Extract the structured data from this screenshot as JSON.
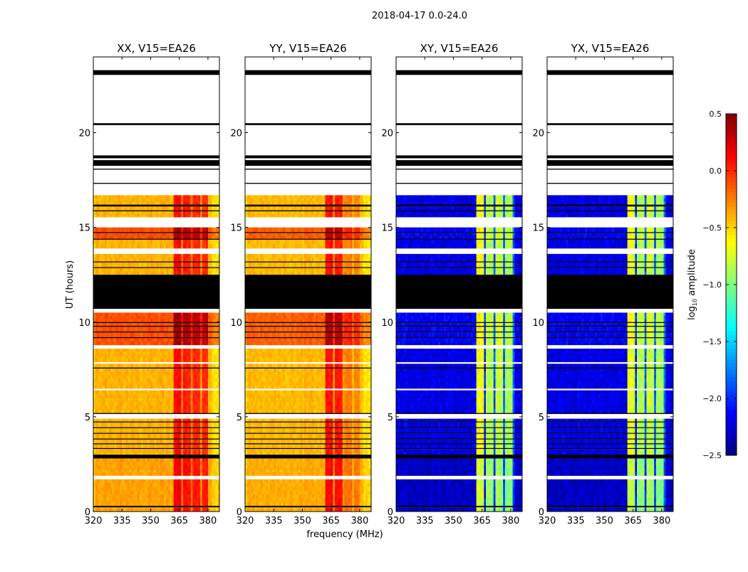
{
  "chart_data": {
    "type": "heatmap",
    "suptitle": "2018-04-17 0.0-24.0",
    "xlabel": "frequency (MHz)",
    "ylabel": "UT (hours)",
    "xlim": [
      320,
      386
    ],
    "ylim": [
      0,
      24
    ],
    "xticks": [
      "320",
      "335",
      "350",
      "365",
      "380"
    ],
    "xtick_values": [
      320,
      335,
      350,
      365,
      380
    ],
    "yticks": [
      "0",
      "5",
      "10",
      "15",
      "20"
    ],
    "ytick_values": [
      0,
      5,
      10,
      15,
      20
    ],
    "colorbar": {
      "label_main": "log",
      "label_sub": "10",
      "label_rest": " amplitude",
      "range": [
        -2.5,
        0.5
      ],
      "cmap": "jet",
      "ticks": [
        "0.5",
        "0.0",
        "−0.5",
        "−1.0",
        "−1.5",
        "−2.0",
        "−2.5"
      ],
      "tick_values": [
        0.5,
        0.0,
        -0.5,
        -1.0,
        -1.5,
        -2.0,
        -2.5
      ]
    },
    "time_segments": [
      [
        23.3,
        24,
        "blank",
        0
      ],
      [
        23.05,
        23.3,
        "flag",
        0
      ],
      [
        20.5,
        23.05,
        "blank",
        0
      ],
      [
        20.4,
        20.5,
        "flag",
        0
      ],
      [
        18.8,
        20.4,
        "blank",
        0
      ],
      [
        18.65,
        18.8,
        "flag",
        0
      ],
      [
        18.55,
        18.65,
        "blank",
        0
      ],
      [
        18.25,
        18.55,
        "flag",
        0
      ],
      [
        18.1,
        18.25,
        "blank",
        0
      ],
      [
        18.05,
        18.1,
        "flag",
        0
      ],
      [
        17.35,
        18.05,
        "blank",
        0
      ],
      [
        17.3,
        17.35,
        "flag",
        0
      ],
      [
        16.7,
        17.3,
        "blank",
        0
      ],
      [
        16.2,
        16.7,
        "data",
        0
      ],
      [
        16.1,
        16.2,
        "flag",
        0
      ],
      [
        15.9,
        16.1,
        "data",
        0
      ],
      [
        15.85,
        15.9,
        "flag",
        0
      ],
      [
        15.55,
        15.85,
        "data",
        0
      ],
      [
        15.0,
        15.55,
        "blank",
        0
      ],
      [
        14.75,
        15.0,
        "data",
        1
      ],
      [
        14.7,
        14.75,
        "flag",
        0
      ],
      [
        14.4,
        14.7,
        "data",
        1
      ],
      [
        14.35,
        14.4,
        "flag",
        0
      ],
      [
        13.9,
        14.35,
        "data",
        0
      ],
      [
        13.6,
        13.9,
        "blank",
        0
      ],
      [
        13.2,
        13.6,
        "data",
        0
      ],
      [
        13.15,
        13.2,
        "flag",
        0
      ],
      [
        12.9,
        13.15,
        "data",
        0
      ],
      [
        12.85,
        12.9,
        "flag",
        0
      ],
      [
        12.5,
        12.85,
        "data",
        0
      ],
      [
        10.7,
        12.5,
        "flag",
        0
      ],
      [
        10.5,
        10.7,
        "blank",
        0
      ],
      [
        10.0,
        10.5,
        "data",
        1
      ],
      [
        9.95,
        10.0,
        "flag",
        0
      ],
      [
        9.8,
        9.95,
        "data",
        1
      ],
      [
        9.75,
        9.8,
        "flag",
        0
      ],
      [
        9.5,
        9.75,
        "data",
        1
      ],
      [
        9.45,
        9.5,
        "flag",
        0
      ],
      [
        9.2,
        9.45,
        "data",
        1
      ],
      [
        9.15,
        9.2,
        "flag",
        0
      ],
      [
        8.8,
        9.15,
        "data",
        1
      ],
      [
        8.6,
        8.8,
        "blank",
        0
      ],
      [
        7.9,
        8.6,
        "data",
        0
      ],
      [
        7.8,
        7.9,
        "blank",
        0
      ],
      [
        7.6,
        7.8,
        "data",
        0
      ],
      [
        7.55,
        7.6,
        "flag",
        0
      ],
      [
        6.5,
        7.55,
        "data",
        0
      ],
      [
        6.4,
        6.5,
        "blank",
        0
      ],
      [
        5.2,
        6.4,
        "data",
        0
      ],
      [
        5.15,
        5.2,
        "flag",
        0
      ],
      [
        4.9,
        5.15,
        "blank",
        0
      ],
      [
        4.75,
        4.9,
        "data",
        0
      ],
      [
        4.7,
        4.75,
        "flag",
        0
      ],
      [
        4.45,
        4.7,
        "data",
        0
      ],
      [
        4.4,
        4.45,
        "flag",
        0
      ],
      [
        4.15,
        4.4,
        "data",
        0
      ],
      [
        4.1,
        4.15,
        "flag",
        0
      ],
      [
        3.85,
        4.1,
        "data",
        0
      ],
      [
        3.8,
        3.85,
        "flag",
        0
      ],
      [
        3.6,
        3.8,
        "data",
        0
      ],
      [
        3.55,
        3.6,
        "flag",
        0
      ],
      [
        3.35,
        3.55,
        "data",
        0
      ],
      [
        3.3,
        3.35,
        "flag",
        0
      ],
      [
        3.0,
        3.3,
        "data",
        0
      ],
      [
        2.8,
        3.0,
        "flag",
        0
      ],
      [
        1.9,
        2.8,
        "data",
        2
      ],
      [
        1.7,
        1.9,
        "blank",
        0
      ],
      [
        0.3,
        1.7,
        "data",
        2
      ],
      [
        0.22,
        0.3,
        "flag",
        0
      ],
      [
        0,
        0.22,
        "data",
        2
      ]
    ],
    "panels": [
      {
        "title": "XX, V15=EA26",
        "base_levels": [
          -0.4,
          -0.1,
          -0.35
        ],
        "channel_offsets": [
          [
            320,
            321.5,
            -0.12
          ],
          [
            362,
            366,
            0.5
          ],
          [
            366,
            367,
            0.15
          ],
          [
            367,
            371,
            0.45
          ],
          [
            371,
            372,
            0.15
          ],
          [
            372,
            376.5,
            0.4
          ],
          [
            376.5,
            377.5,
            0.1
          ],
          [
            377.5,
            380.5,
            0.4
          ],
          [
            382,
            386,
            -0.12
          ]
        ]
      },
      {
        "title": "YY, V15=EA26",
        "base_levels": [
          -0.42,
          -0.15,
          -0.38
        ],
        "channel_offsets": [
          [
            320,
            321.5,
            -0.12
          ],
          [
            362,
            366,
            0.5
          ],
          [
            366,
            367,
            0.1
          ],
          [
            367,
            371,
            0.5
          ],
          [
            371,
            372,
            0.1
          ],
          [
            372,
            376.5,
            0.2
          ],
          [
            377.5,
            380.5,
            0.15
          ],
          [
            382,
            386,
            -0.12
          ]
        ]
      },
      {
        "title": "XY, V15=EA26",
        "base_levels": [
          -2.2,
          -2.15,
          -2.3
        ],
        "channel_offsets": [
          [
            362,
            366,
            1.55
          ],
          [
            366,
            367,
            0.2
          ],
          [
            367,
            371,
            1.35
          ],
          [
            371,
            372,
            0.3
          ],
          [
            372,
            376.5,
            1.4
          ],
          [
            376.5,
            377.5,
            0.3
          ],
          [
            377.5,
            381,
            1.3
          ],
          [
            381,
            382,
            0.4
          ]
        ]
      },
      {
        "title": "YX, V15=EA26",
        "base_levels": [
          -2.2,
          -2.15,
          -2.3
        ],
        "channel_offsets": [
          [
            362,
            366,
            1.5
          ],
          [
            366,
            367,
            0.2
          ],
          [
            367,
            371,
            1.35
          ],
          [
            371,
            372,
            0.3
          ],
          [
            372,
            376.5,
            1.4
          ],
          [
            376.5,
            377.5,
            0.3
          ],
          [
            377.5,
            381,
            1.3
          ],
          [
            381,
            382,
            0.4
          ]
        ]
      }
    ]
  }
}
